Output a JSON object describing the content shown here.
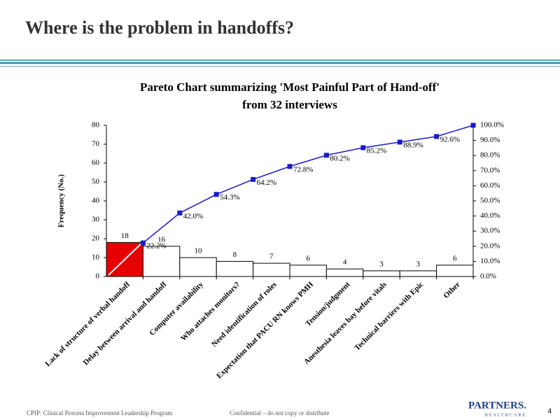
{
  "slide": {
    "title": "Where is the problem in handoffs?",
    "footer_left": "CPIP: Clinical Process Improvement Leadership Program",
    "footer_center": "Confidential – do not copy or distribute",
    "page_number": "4",
    "logo": "PARTNERS.",
    "logo_sub": "HEALTHCARE"
  },
  "chart_data": {
    "type": "bar",
    "title": [
      "Pareto Chart summarizing 'Most Painful Part of Hand-off'",
      "from 32 interviews"
    ],
    "y_label": "Frequency (No.)",
    "categories": [
      "Lack of structure of verbal handoff",
      "Delay between arrival and handoff",
      "Computer availability",
      "Who attaches monitors?",
      "Need identification of roles",
      "Expectation that PACU RN knows PMH",
      "Tension/judgment",
      "Anesthesia leaves bay before vitals",
      "Technical barriers with Epic",
      "Other"
    ],
    "series": [
      {
        "type": "bar",
        "colors": [
          "#e60000",
          "#ffffff",
          "#ffffff",
          "#ffffff",
          "#ffffff",
          "#ffffff",
          "#ffffff",
          "#ffffff",
          "#ffffff",
          "#ffffff"
        ],
        "values": [
          18,
          16,
          10,
          8,
          7,
          6,
          4,
          3,
          3,
          6
        ]
      },
      {
        "type": "line",
        "axis": "y2",
        "color": "#1a1acc",
        "values": [
          22.2,
          42.0,
          54.3,
          64.2,
          72.8,
          80.2,
          85.2,
          88.9,
          92.6,
          100.0
        ],
        "value_labels": [
          "22.2%",
          "42.0%",
          "54.3%",
          "64.2%",
          "72.8%",
          "80.2%",
          "85.2%",
          "88.9%",
          "92.6%",
          null
        ]
      }
    ],
    "ylim": [
      0,
      80
    ],
    "yticks": [
      0,
      10,
      20,
      30,
      40,
      50,
      60,
      70,
      80
    ],
    "y2lim": [
      0,
      100
    ],
    "y2ticks": [
      {
        "value": 0,
        "label": "0.0%"
      },
      {
        "value": 10,
        "label": "10.0%"
      },
      {
        "value": 20,
        "label": "20.0%"
      },
      {
        "value": 30,
        "label": "30.0%"
      },
      {
        "value": 40,
        "label": "40.0%"
      },
      {
        "value": 50,
        "label": "50.0%"
      },
      {
        "value": 60,
        "label": "60.0%"
      },
      {
        "value": 70,
        "label": "70.0%"
      },
      {
        "value": 80,
        "label": "80.0%"
      },
      {
        "value": 90,
        "label": "90.0%"
      },
      {
        "value": 100,
        "label": "100.0%"
      }
    ]
  }
}
